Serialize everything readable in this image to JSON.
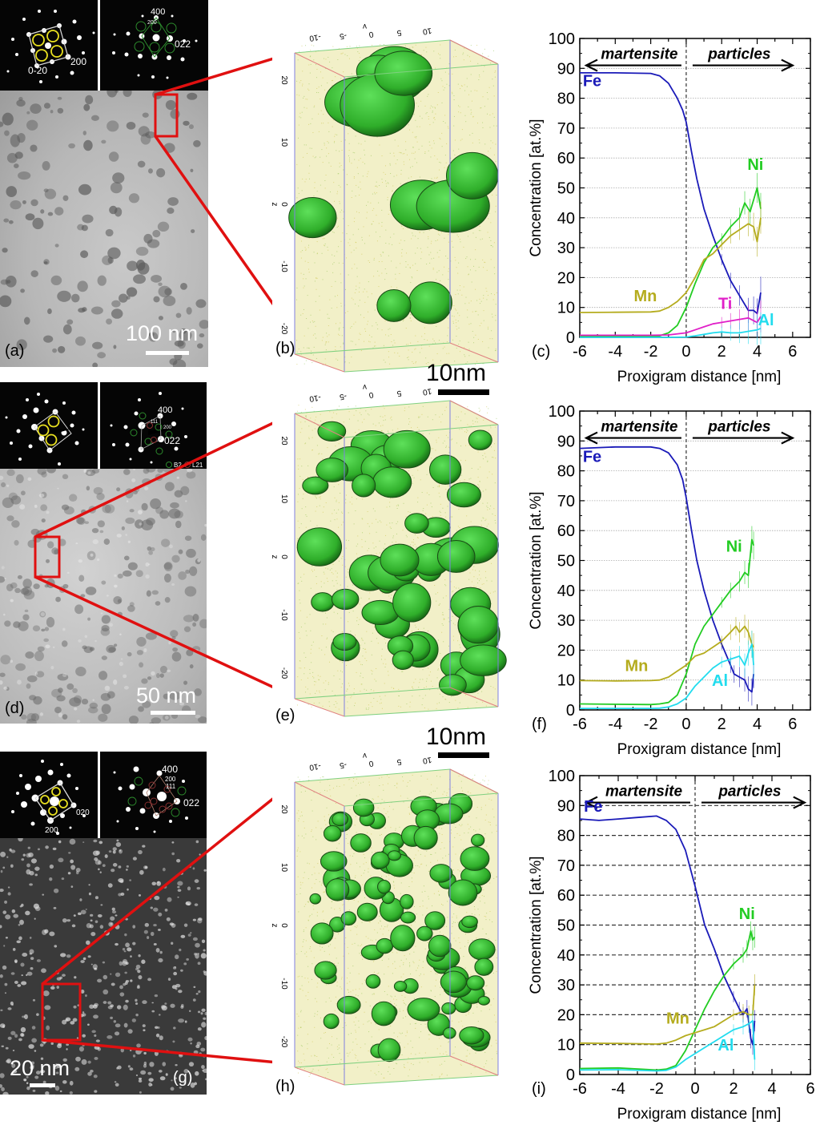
{
  "figure": {
    "rows": [
      {
        "micrograph": {
          "label": "(a)",
          "scale": "100 nm",
          "type": "bright-field TEM"
        },
        "saed_left": {
          "indices": [
            "200",
            "0-20"
          ]
        },
        "saed_right": {
          "indices": [
            "400",
            "200",
            "022"
          ]
        },
        "apt": {
          "label": "(b)",
          "scale": "10nm",
          "axis_y_label": "y",
          "axis_z_label": "z",
          "y_ticks": [
            "-10",
            "-5",
            "0",
            "5",
            "10"
          ],
          "z_ticks": [
            "-20",
            "-10",
            "0",
            "10",
            "20"
          ]
        },
        "chart_label": "(c)"
      },
      {
        "micrograph": {
          "label": "(d)",
          "scale": "50 nm",
          "type": "bright-field TEM"
        },
        "saed_left": {
          "indices": []
        },
        "saed_right": {
          "indices": [
            "400",
            "111",
            "200",
            "022"
          ],
          "legend": [
            "B2",
            "L21"
          ]
        },
        "apt": {
          "label": "(e)",
          "scale": "10nm",
          "axis_y_label": "y",
          "axis_z_label": "z",
          "y_ticks": [
            "-10",
            "-5",
            "0",
            "5",
            "10"
          ],
          "z_ticks": [
            "-20",
            "-10",
            "0",
            "10",
            "20"
          ]
        },
        "chart_label": "(f)"
      },
      {
        "micrograph": {
          "label": "(g)",
          "scale": "20 nm",
          "type": "dark-field TEM"
        },
        "saed_left": {
          "indices": [
            "020",
            "200"
          ]
        },
        "saed_right": {
          "indices": [
            "400",
            "200",
            "111",
            "022"
          ]
        },
        "apt": {
          "label": "(h)",
          "axis_y_label": "y",
          "axis_z_label": "z",
          "y_ticks": [
            "-10",
            "-5",
            "0",
            "5",
            "10"
          ],
          "z_ticks": [
            "-20",
            "-10",
            "0",
            "10",
            "20"
          ]
        },
        "chart_label": "(i)"
      }
    ]
  },
  "colors": {
    "Fe": "#1a1ab8",
    "Ni": "#22cc22",
    "Mn": "#b5ac1e",
    "Ti": "#e020c8",
    "Al": "#22dcee",
    "zoom_box": "#e01010"
  },
  "chart_data": [
    {
      "type": "line",
      "panel": "(c)",
      "title": "",
      "xlabel": "Proxigram distance [nm]",
      "ylabel": "Concentration [at.%]",
      "xlim": [
        -6,
        7
      ],
      "ylim": [
        0,
        100
      ],
      "xticks": [
        -6,
        -4,
        -2,
        0,
        2,
        4,
        6
      ],
      "yticks": [
        0,
        10,
        20,
        30,
        40,
        50,
        60,
        70,
        80,
        90,
        100
      ],
      "grid": "dotted",
      "annotations": [
        {
          "text": "martensite",
          "arrow": "left"
        },
        {
          "text": "particles",
          "arrow": "right"
        }
      ],
      "interface_x": 0,
      "series": [
        {
          "name": "Fe",
          "x": [
            -6,
            -4,
            -2,
            -1.5,
            -1,
            -0.5,
            -0.2,
            0,
            0.3,
            0.6,
            1,
            1.5,
            2,
            2.5,
            3,
            3.5,
            3.8,
            4,
            4.2
          ],
          "y": [
            88.5,
            88.5,
            88.3,
            87.5,
            85,
            80,
            76,
            72,
            62,
            53,
            43,
            34,
            26,
            19,
            14,
            9,
            9,
            8,
            15
          ]
        },
        {
          "name": "Ni",
          "x": [
            -6,
            -2,
            -1.5,
            -1,
            -0.5,
            0,
            0.5,
            1,
            1.5,
            2,
            2.5,
            3,
            3.3,
            3.6,
            4,
            4.2
          ],
          "y": [
            0.3,
            0.3,
            0.5,
            1.5,
            4,
            10,
            18,
            25,
            30,
            33,
            37,
            40,
            45,
            42,
            50,
            43
          ]
        },
        {
          "name": "Mn",
          "x": [
            -6,
            -4,
            -2,
            -1.5,
            -1,
            -0.5,
            0,
            0.5,
            1,
            1.5,
            2,
            2.5,
            3,
            3.5,
            3.8,
            4,
            4.2
          ],
          "y": [
            8.3,
            8.4,
            8.5,
            8.8,
            10,
            12,
            15,
            20,
            26,
            28,
            31,
            34,
            36,
            38,
            37,
            32,
            40
          ]
        },
        {
          "name": "Ti",
          "x": [
            -6,
            -2,
            -1,
            0,
            0.5,
            1,
            1.5,
            2,
            2.5,
            3,
            3.5,
            4,
            4.2
          ],
          "y": [
            0.7,
            0.7,
            0.8,
            1.5,
            2.5,
            3.5,
            4.5,
            5,
            5.5,
            6,
            6.5,
            5,
            7
          ]
        },
        {
          "name": "Al",
          "x": [
            -6,
            -1,
            0,
            0.5,
            1,
            1.5,
            2,
            2.5,
            3,
            3.5,
            4,
            4.2
          ],
          "y": [
            0,
            0,
            0.1,
            0.5,
            1,
            1.5,
            1.8,
            1.5,
            1.5,
            2,
            2.5,
            3
          ]
        }
      ]
    },
    {
      "type": "line",
      "panel": "(f)",
      "title": "",
      "xlabel": "Proxigram distance [nm]",
      "ylabel": "Concentration [at.%]",
      "xlim": [
        -6,
        7
      ],
      "ylim": [
        0,
        100
      ],
      "xticks": [
        -6,
        -4,
        -2,
        0,
        2,
        4,
        6
      ],
      "yticks": [
        0,
        10,
        20,
        30,
        40,
        50,
        60,
        70,
        80,
        90,
        100
      ],
      "grid": "dotted",
      "annotations": [
        {
          "text": "martensite",
          "arrow": "left"
        },
        {
          "text": "particles",
          "arrow": "right"
        }
      ],
      "interface_x": 0,
      "series": [
        {
          "name": "Fe",
          "x": [
            -6,
            -4,
            -2,
            -1.5,
            -1,
            -0.5,
            -0.2,
            0,
            0.3,
            0.6,
            1,
            1.5,
            2,
            2.5,
            2.7,
            3,
            3.3,
            3.5,
            3.7,
            3.8
          ],
          "y": [
            87.5,
            88,
            88,
            87.5,
            86,
            82,
            77,
            71,
            60,
            50,
            40,
            30,
            22,
            15,
            12,
            11,
            10,
            7,
            6,
            12
          ]
        },
        {
          "name": "Ni",
          "x": [
            -6,
            -2,
            -1.5,
            -1,
            -0.5,
            0,
            0.5,
            1,
            1.5,
            2,
            2.5,
            3,
            3.3,
            3.5,
            3.7,
            3.8
          ],
          "y": [
            2,
            1.8,
            2,
            2.5,
            5,
            12,
            22,
            28,
            32,
            36,
            40,
            43,
            46,
            45,
            57,
            55
          ]
        },
        {
          "name": "Mn",
          "x": [
            -6,
            -4,
            -2,
            -1.5,
            -1,
            -0.5,
            0,
            0.5,
            1,
            1.5,
            2,
            2.5,
            2.8,
            3,
            3.3,
            3.5,
            3.7,
            3.8
          ],
          "y": [
            9.8,
            9.7,
            9.8,
            10,
            11,
            13,
            15,
            18,
            19,
            21,
            23,
            26,
            28,
            26,
            28,
            26,
            22,
            21
          ]
        },
        {
          "name": "Al",
          "x": [
            -6,
            -2,
            -1.5,
            -1,
            -0.5,
            0,
            0.5,
            1,
            1.5,
            2,
            2.5,
            3,
            3.3,
            3.5,
            3.7,
            3.8
          ],
          "y": [
            0.5,
            0.5,
            0.6,
            1,
            2,
            4,
            8,
            11,
            14,
            16,
            17,
            18,
            15,
            19,
            22,
            15
          ]
        }
      ]
    },
    {
      "type": "line",
      "panel": "(i)",
      "title": "",
      "xlabel": "Proxigram distance [nm]",
      "ylabel": "Concentration [at.%]",
      "xlim": [
        -6,
        6
      ],
      "ylim": [
        0,
        100
      ],
      "xticks": [
        -6,
        -4,
        -2,
        0,
        2,
        4,
        6
      ],
      "yticks": [
        0,
        10,
        20,
        30,
        40,
        50,
        60,
        70,
        80,
        90,
        100
      ],
      "grid": "dashed",
      "annotations": [
        {
          "text": "martensite",
          "arrow": "left"
        },
        {
          "text": "particles",
          "arrow": "right"
        }
      ],
      "interface_x": 0,
      "series": [
        {
          "name": "Fe",
          "x": [
            -6,
            -5,
            -4,
            -3,
            -2,
            -1.5,
            -1,
            -0.5,
            0,
            0.5,
            1,
            1.5,
            2,
            2.3,
            2.5,
            2.7,
            2.9,
            3,
            3.1
          ],
          "y": [
            85.5,
            85,
            85.5,
            86,
            86.5,
            85,
            82,
            75,
            63,
            50,
            42,
            33,
            26,
            22,
            20,
            22,
            12,
            10,
            18
          ]
        },
        {
          "name": "Ni",
          "x": [
            -6,
            -4,
            -2,
            -1.5,
            -1,
            -0.5,
            0,
            0.5,
            1,
            1.5,
            2,
            2.5,
            2.7,
            2.9,
            3,
            3.1
          ],
          "y": [
            2,
            2.2,
            1.5,
            1.8,
            3,
            8,
            15,
            22,
            28,
            33,
            37,
            40,
            42,
            48,
            45,
            46
          ]
        },
        {
          "name": "Mn",
          "x": [
            -6,
            -4,
            -2,
            -1.5,
            -1,
            -0.5,
            0,
            0.5,
            1,
            1.5,
            2,
            2.5,
            2.8,
            3,
            3.1
          ],
          "y": [
            10.5,
            10.4,
            10.2,
            10.5,
            11.5,
            13,
            14,
            15,
            16,
            18,
            20,
            21,
            20,
            20,
            30
          ]
        },
        {
          "name": "Al",
          "x": [
            -6,
            -4,
            -2,
            -1.5,
            -1,
            -0.5,
            0,
            0.5,
            1,
            1.5,
            2,
            2.5,
            2.8,
            3,
            3.1
          ],
          "y": [
            1.5,
            1.6,
            1.2,
            1.4,
            2.5,
            5,
            7,
            9,
            11,
            13,
            15,
            16,
            17,
            18,
            5
          ]
        }
      ]
    }
  ],
  "series_labels": {
    "c": [
      {
        "name": "Fe",
        "x": -5.3,
        "y": 84
      },
      {
        "name": "Mn",
        "x": -2.3,
        "y": 12
      },
      {
        "name": "Ti",
        "x": 2.2,
        "y": 9.5
      },
      {
        "name": "Ni",
        "x": 3.9,
        "y": 56
      },
      {
        "name": "Al",
        "x": 4.5,
        "y": 4
      }
    ],
    "f": [
      {
        "name": "Fe",
        "x": -5.3,
        "y": 83
      },
      {
        "name": "Mn",
        "x": -2.8,
        "y": 13
      },
      {
        "name": "Ni",
        "x": 2.7,
        "y": 53
      },
      {
        "name": "Al",
        "x": 1.9,
        "y": 8
      }
    ],
    "i": [
      {
        "name": "Fe",
        "x": -5.3,
        "y": 88
      },
      {
        "name": "Mn",
        "x": -0.9,
        "y": 17
      },
      {
        "name": "Ni",
        "x": 2.7,
        "y": 52
      },
      {
        "name": "Al",
        "x": 1.6,
        "y": 8
      }
    ]
  }
}
